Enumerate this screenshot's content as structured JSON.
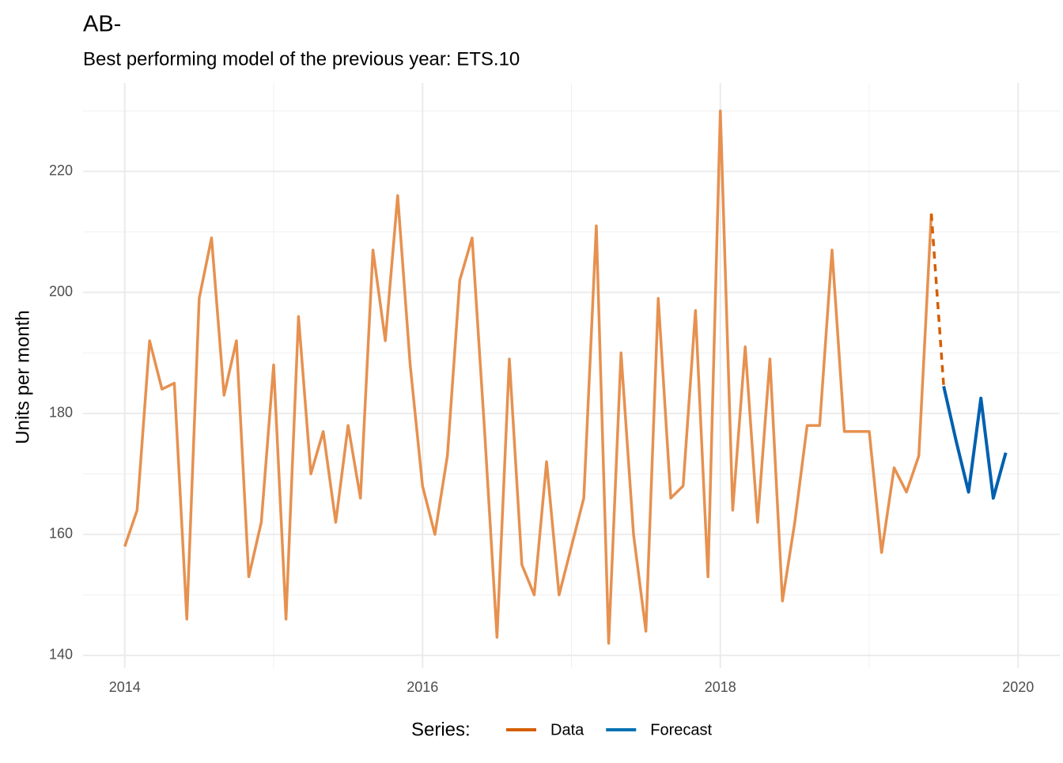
{
  "chart_data": {
    "type": "line",
    "title": "AB-",
    "subtitle": "Best performing model of the previous year: ETS.10",
    "y_label": "Units per month",
    "legend_title": "Series:",
    "legend": "bottom",
    "grid": true,
    "xlim": [
      2013.72,
      2020.28
    ],
    "xticks": [
      2014,
      2016,
      2018,
      2020
    ],
    "ylim": [
      137.9,
      234.6
    ],
    "yticks": [
      140,
      160,
      180,
      200,
      220
    ],
    "series": [
      {
        "name": "Data",
        "color": "#d55e00",
        "line_color": "#e69150",
        "x": [
          2014,
          2014.083,
          2014.167,
          2014.25,
          2014.333,
          2014.417,
          2014.5,
          2014.583,
          2014.667,
          2014.75,
          2014.833,
          2014.917,
          2015,
          2015.083,
          2015.167,
          2015.25,
          2015.333,
          2015.417,
          2015.5,
          2015.583,
          2015.667,
          2015.75,
          2015.833,
          2015.917,
          2016,
          2016.083,
          2016.167,
          2016.25,
          2016.333,
          2016.417,
          2016.5,
          2016.583,
          2016.667,
          2016.75,
          2016.833,
          2016.917,
          2017,
          2017.083,
          2017.167,
          2017.25,
          2017.333,
          2017.417,
          2017.5,
          2017.583,
          2017.667,
          2017.75,
          2017.833,
          2017.917,
          2018,
          2018.083,
          2018.167,
          2018.25,
          2018.333,
          2018.417,
          2018.5,
          2018.583,
          2018.667,
          2018.75,
          2018.833,
          2018.917,
          2019,
          2019.083,
          2019.167,
          2019.25,
          2019.333,
          2019.417
        ],
        "values": [
          158,
          164,
          192,
          184,
          185,
          146,
          199,
          209,
          183,
          192,
          153,
          162,
          188,
          146,
          196,
          170,
          177,
          162,
          178,
          166,
          207,
          192,
          216,
          188,
          168,
          160,
          173,
          202,
          209,
          177,
          143,
          189,
          155,
          150,
          172,
          150,
          158,
          166,
          211,
          142,
          190,
          160,
          144,
          199,
          166,
          168,
          197,
          153,
          230,
          164,
          191,
          162,
          189,
          149,
          162,
          178,
          178,
          207,
          177,
          177,
          177,
          157,
          171,
          167,
          173,
          213
        ]
      },
      {
        "name": "Forecast",
        "color": "#0072b2",
        "line_color": "#0060b0",
        "x": [
          2019.5,
          2019.583,
          2019.667,
          2019.75,
          2019.833,
          2019.917
        ],
        "values": [
          184.5,
          175.5,
          167,
          182.5,
          166,
          173.5
        ]
      }
    ]
  }
}
